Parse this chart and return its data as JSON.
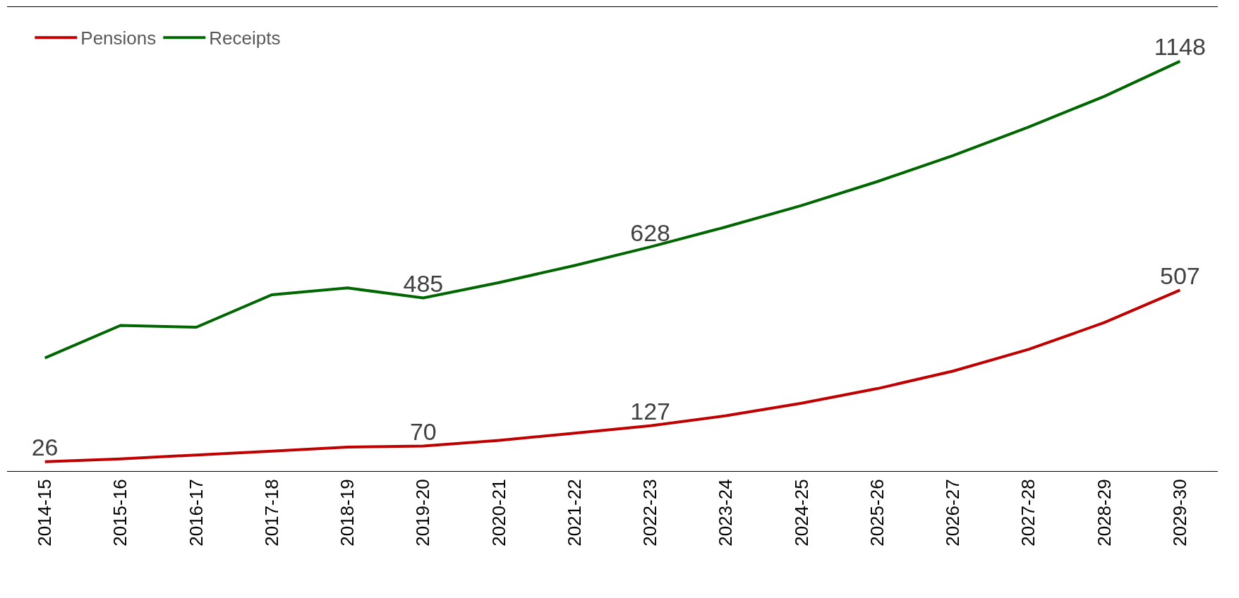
{
  "chart_data": {
    "type": "line",
    "categories": [
      "2014-15",
      "2015-16",
      "2016-17",
      "2017-18",
      "2018-19",
      "2019-20",
      "2020-21",
      "2021-22",
      "2022-23",
      "2023-24",
      "2024-25",
      "2025-26",
      "2026-27",
      "2027-28",
      "2028-29",
      "2029-30"
    ],
    "series": [
      {
        "name": "Pensions",
        "color": "#c00000",
        "values": [
          26,
          34,
          45,
          56,
          67,
          70,
          86,
          106,
          127,
          155,
          190,
          231,
          280,
          341,
          416,
          507
        ],
        "value_labels": [
          "26",
          null,
          null,
          null,
          null,
          "70",
          null,
          null,
          "127",
          null,
          null,
          null,
          null,
          null,
          null,
          "507"
        ]
      },
      {
        "name": "Receipts",
        "color": "#006600",
        "values": [
          317,
          408,
          403,
          494,
          513,
          485,
          528,
          576,
          628,
          684,
          744,
          811,
          884,
          964,
          1050,
          1148
        ],
        "value_labels": [
          null,
          null,
          null,
          null,
          null,
          "485",
          null,
          null,
          "628",
          null,
          null,
          null,
          null,
          null,
          null,
          "1148"
        ]
      }
    ],
    "ylim": [
      0,
      1300
    ],
    "legend": "top left",
    "marker": "none",
    "line_style": "solid",
    "tick_labels": "x"
  }
}
